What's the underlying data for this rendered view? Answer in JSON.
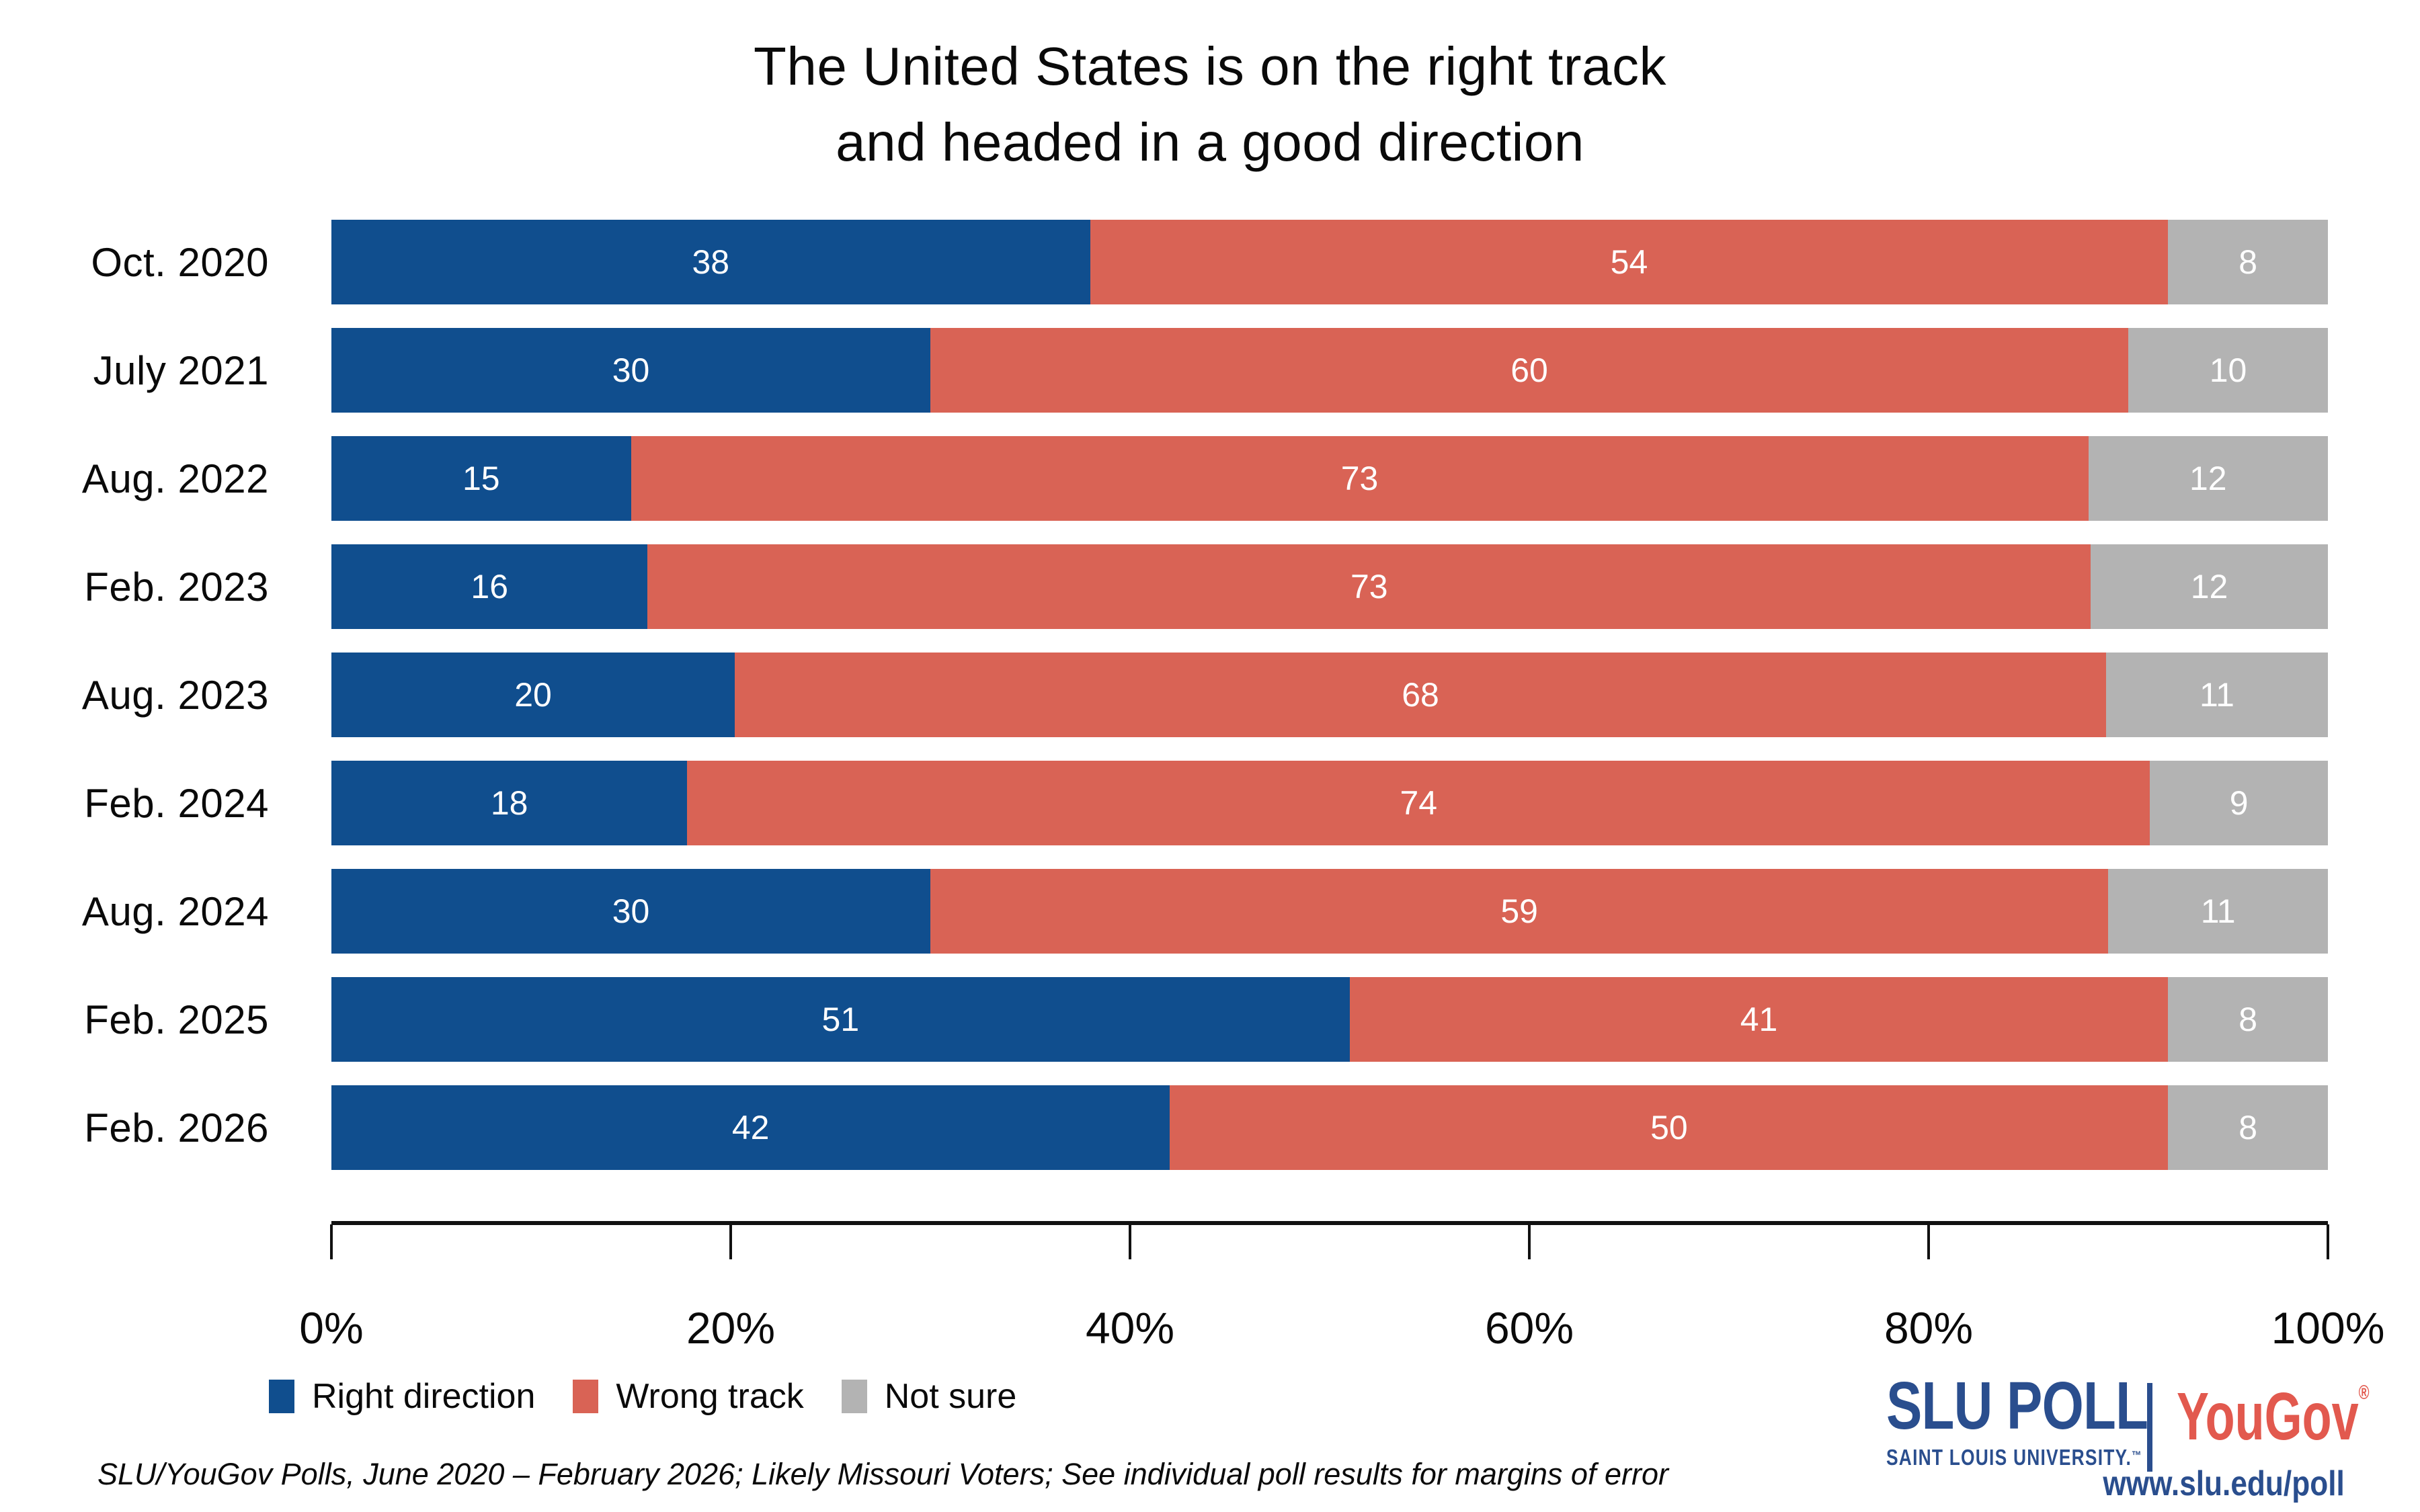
{
  "header": {
    "title_line1": "The United States is on the right track",
    "title_line2": "and headed in a good direction"
  },
  "chart_data": {
    "type": "bar",
    "orientation": "horizontal",
    "stacked": true,
    "normalized_to_100": true,
    "title": "The United States is on the right track and headed in a good direction",
    "categories": [
      "Oct. 2020",
      "July 2021",
      "Aug. 2022",
      "Feb. 2023",
      "Aug. 2023",
      "Feb. 2024",
      "Aug. 2024",
      "Feb. 2025",
      "Feb. 2026"
    ],
    "series": [
      {
        "name": "Right direction",
        "color": "#104E8E",
        "values": [
          38,
          30,
          15,
          16,
          20,
          18,
          30,
          51,
          42
        ]
      },
      {
        "name": "Wrong track",
        "color": "#D96355",
        "values": [
          54,
          60,
          73,
          73,
          68,
          74,
          59,
          41,
          50
        ]
      },
      {
        "name": "Not sure",
        "color": "#B3B3B3",
        "values": [
          8,
          10,
          12,
          12,
          11,
          9,
          11,
          8,
          8
        ]
      }
    ],
    "x_axis": {
      "range": [
        0,
        100
      ],
      "tick_labels": [
        "0%",
        "20%",
        "40%",
        "60%",
        "80%",
        "100%"
      ]
    },
    "legend_position": "bottom-left",
    "grid": false,
    "bar_value_label_color": "#ffffff"
  },
  "footer": {
    "note": "SLU/YouGov Polls, June 2020 – February 2026; Likely Missouri Voters; See individual poll results for margins of error"
  },
  "branding": {
    "slu_title": "SLU POLL",
    "slu_subtitle": "SAINT LOUIS UNIVERSITY.",
    "slu_trademark": "™",
    "yougov": "YouGov",
    "yougov_registered": "®",
    "url": "www.slu.edu/poll",
    "slu_blue": "#2A4E8E",
    "yougov_coral": "#E2594E"
  }
}
